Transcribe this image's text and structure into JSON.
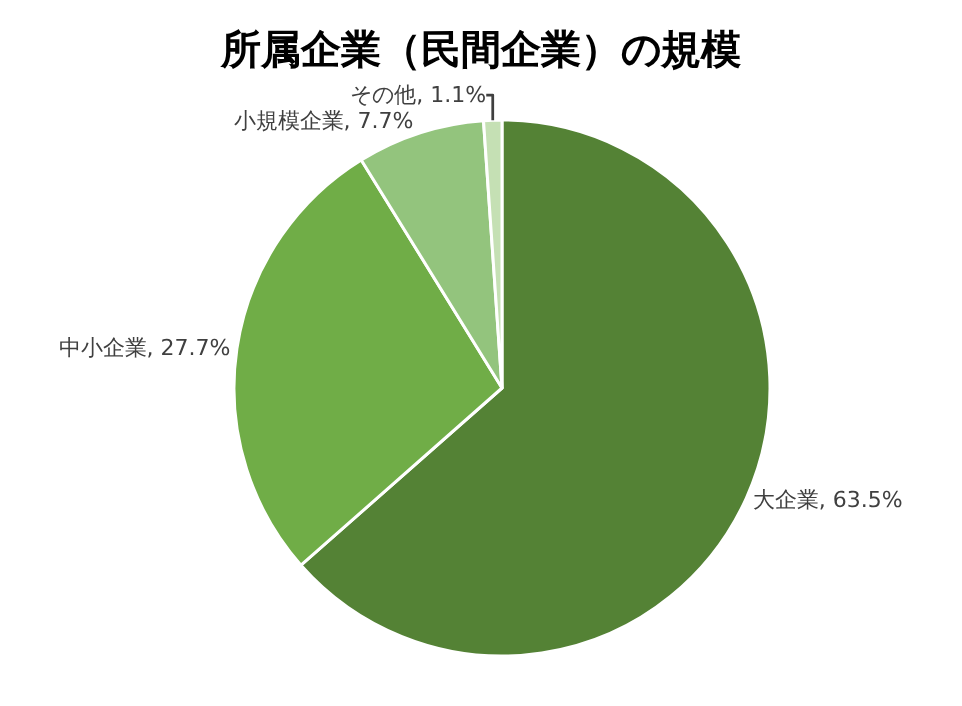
{
  "chart_data": {
    "type": "pie",
    "title": "所属企業（民間企業）の規模",
    "categories": [
      "大企業",
      "中小企業",
      "小規模企業",
      "その他"
    ],
    "values": [
      63.5,
      27.7,
      7.7,
      1.1
    ],
    "value_labels": [
      "63.5%",
      "27.7%",
      "7.7%",
      "1.1%"
    ],
    "colors": [
      "#548235",
      "#70ad47",
      "#93c47d",
      "#c5e0b4"
    ],
    "legend": false
  }
}
